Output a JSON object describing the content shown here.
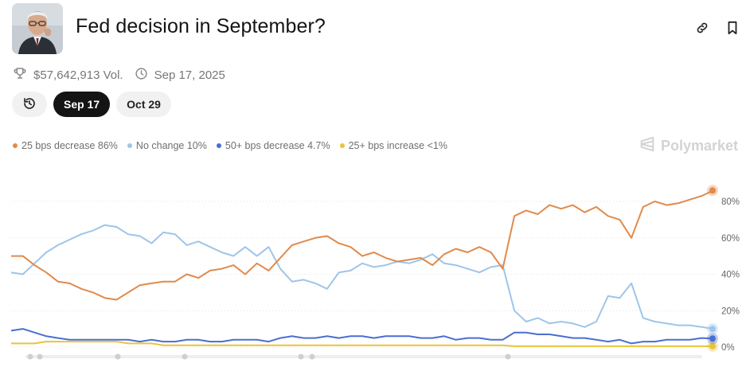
{
  "header": {
    "title": "Fed decision in September?"
  },
  "meta": {
    "volume": "$57,642,913 Vol.",
    "date": "Sep 17, 2025"
  },
  "tabs": [
    {
      "label": "Sep 17",
      "active": true
    },
    {
      "label": "Oct 29",
      "active": false
    }
  ],
  "watermark": "Polymarket",
  "chart_data": {
    "type": "line",
    "title": "",
    "xlabel": "",
    "ylabel": "",
    "ylim": [
      0,
      0.9
    ],
    "yticks": [
      "80%",
      "60%",
      "40%",
      "20%",
      "0%"
    ],
    "grid": true,
    "legend_position": "top-left",
    "x": [
      0,
      1,
      2,
      3,
      4,
      5,
      6,
      7,
      8,
      9,
      10,
      11,
      12,
      13,
      14,
      15,
      16,
      17,
      18,
      19,
      20,
      21,
      22,
      23,
      24,
      25,
      26,
      27,
      28,
      29,
      30,
      31,
      32,
      33,
      34,
      35,
      36,
      37,
      38,
      39,
      40,
      41,
      42,
      43,
      44,
      45,
      46,
      47,
      48,
      49,
      50,
      51,
      52,
      53,
      54,
      55,
      56,
      57,
      58,
      59,
      60
    ],
    "series": [
      {
        "name": "25 bps decrease 86%",
        "color": "#e18a4b",
        "values": [
          0.5,
          0.5,
          0.45,
          0.41,
          0.36,
          0.35,
          0.32,
          0.3,
          0.27,
          0.26,
          0.3,
          0.34,
          0.35,
          0.36,
          0.36,
          0.4,
          0.38,
          0.42,
          0.43,
          0.45,
          0.4,
          0.46,
          0.42,
          0.49,
          0.56,
          0.58,
          0.6,
          0.61,
          0.57,
          0.55,
          0.5,
          0.52,
          0.49,
          0.47,
          0.48,
          0.49,
          0.45,
          0.51,
          0.54,
          0.52,
          0.55,
          0.52,
          0.43,
          0.72,
          0.75,
          0.73,
          0.78,
          0.76,
          0.78,
          0.74,
          0.77,
          0.72,
          0.7,
          0.6,
          0.77,
          0.8,
          0.78,
          0.79,
          0.81,
          0.83,
          0.86
        ]
      },
      {
        "name": "No change 10%",
        "color": "#9ec5ea",
        "values": [
          0.41,
          0.4,
          0.46,
          0.52,
          0.56,
          0.59,
          0.62,
          0.64,
          0.67,
          0.66,
          0.62,
          0.61,
          0.57,
          0.63,
          0.62,
          0.56,
          0.58,
          0.55,
          0.52,
          0.5,
          0.55,
          0.5,
          0.55,
          0.43,
          0.36,
          0.37,
          0.35,
          0.32,
          0.41,
          0.42,
          0.46,
          0.44,
          0.45,
          0.47,
          0.46,
          0.48,
          0.51,
          0.46,
          0.45,
          0.43,
          0.41,
          0.44,
          0.45,
          0.2,
          0.14,
          0.16,
          0.13,
          0.14,
          0.13,
          0.11,
          0.14,
          0.28,
          0.27,
          0.35,
          0.16,
          0.14,
          0.13,
          0.12,
          0.12,
          0.11,
          0.1
        ]
      },
      {
        "name": "50+ bps decrease 4.7%",
        "color": "#4a6fd0",
        "values": [
          0.09,
          0.1,
          0.08,
          0.06,
          0.05,
          0.04,
          0.04,
          0.04,
          0.04,
          0.04,
          0.04,
          0.03,
          0.04,
          0.03,
          0.03,
          0.04,
          0.04,
          0.03,
          0.03,
          0.04,
          0.04,
          0.04,
          0.03,
          0.05,
          0.06,
          0.05,
          0.05,
          0.06,
          0.05,
          0.06,
          0.06,
          0.05,
          0.06,
          0.06,
          0.06,
          0.05,
          0.05,
          0.06,
          0.04,
          0.05,
          0.05,
          0.04,
          0.04,
          0.08,
          0.08,
          0.07,
          0.07,
          0.06,
          0.05,
          0.05,
          0.04,
          0.03,
          0.04,
          0.02,
          0.03,
          0.03,
          0.04,
          0.04,
          0.04,
          0.05,
          0.047
        ]
      },
      {
        "name": "25+ bps increase <1%",
        "color": "#e9c43b",
        "values": [
          0.02,
          0.02,
          0.02,
          0.03,
          0.03,
          0.03,
          0.03,
          0.03,
          0.03,
          0.03,
          0.02,
          0.02,
          0.02,
          0.01,
          0.01,
          0.01,
          0.01,
          0.01,
          0.01,
          0.01,
          0.01,
          0.01,
          0.01,
          0.01,
          0.01,
          0.01,
          0.01,
          0.01,
          0.01,
          0.01,
          0.01,
          0.01,
          0.01,
          0.01,
          0.01,
          0.01,
          0.01,
          0.01,
          0.01,
          0.01,
          0.01,
          0.01,
          0.01,
          0.005,
          0.005,
          0.005,
          0.005,
          0.005,
          0.005,
          0.005,
          0.005,
          0.005,
          0.005,
          0.005,
          0.005,
          0.005,
          0.005,
          0.005,
          0.005,
          0.005,
          0.005
        ]
      }
    ]
  }
}
